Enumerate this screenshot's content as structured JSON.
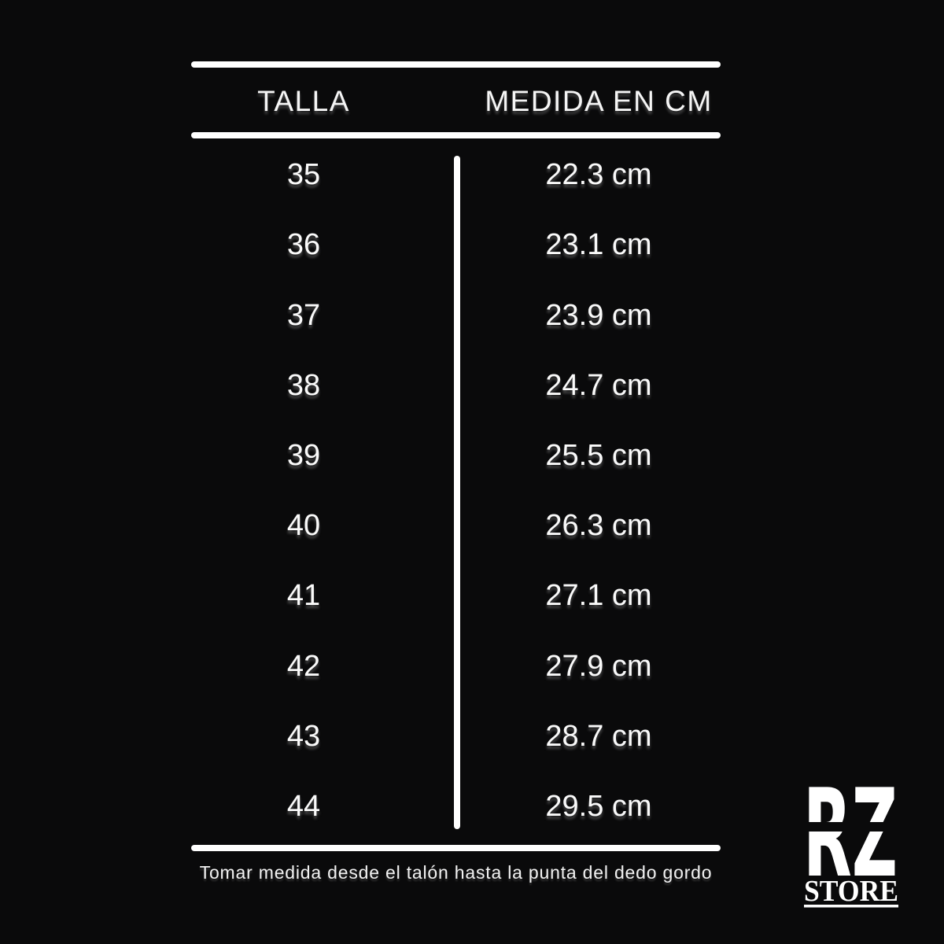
{
  "colors": {
    "background": "#0a0a0b",
    "text": "#ffffff"
  },
  "chart_data": {
    "type": "table",
    "columns": [
      "TALLA",
      "MEDIDA EN CM"
    ],
    "rows": [
      [
        "35",
        "22.3 cm"
      ],
      [
        "36",
        "23.1 cm"
      ],
      [
        "37",
        "23.9 cm"
      ],
      [
        "38",
        "24.7 cm"
      ],
      [
        "39",
        "25.5 cm"
      ],
      [
        "40",
        "26.3 cm"
      ],
      [
        "41",
        "27.1 cm"
      ],
      [
        "42",
        "27.9 cm"
      ],
      [
        "43",
        "28.7 cm"
      ],
      [
        "44",
        "29.5 cm"
      ]
    ],
    "tallas": [
      35,
      36,
      37,
      38,
      39,
      40,
      41,
      42,
      43,
      44
    ],
    "medidas_cm": [
      22.3,
      23.1,
      23.9,
      24.7,
      25.5,
      26.3,
      27.1,
      27.9,
      28.7,
      29.5
    ],
    "title": "",
    "legend": "none",
    "grid": "off"
  },
  "footer": {
    "note": "Tomar medida desde el talón hasta la punta del dedo gordo"
  },
  "logo": {
    "monogram": "RZ",
    "store": "STORE"
  }
}
